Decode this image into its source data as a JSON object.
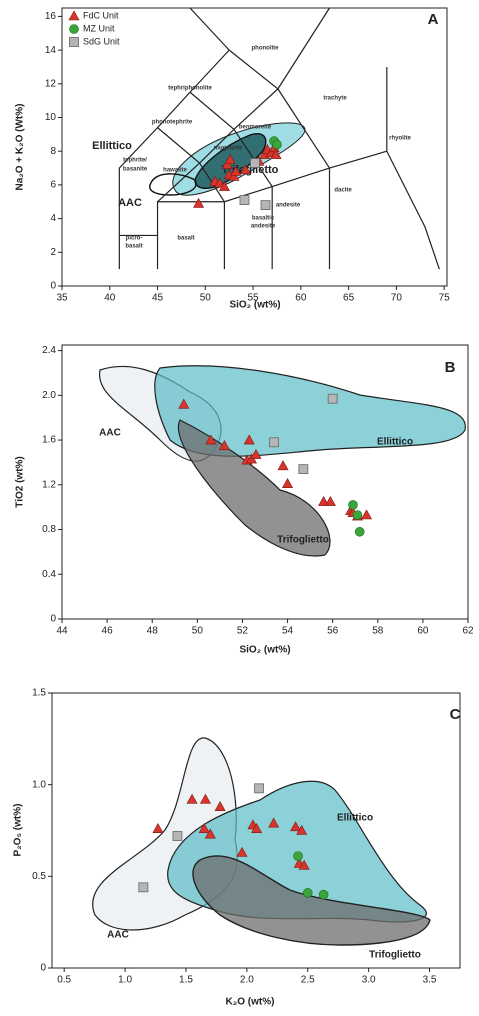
{
  "chart_data": [
    {
      "type": "scatter",
      "title": "A",
      "x_label": "SiO₂ (wt%)",
      "y_label": "Na₂O + K₂O (Wt%)",
      "xlim": [
        35,
        75.3
      ],
      "ylim": [
        0,
        16.5
      ],
      "xticks": [
        35,
        40,
        45,
        50,
        55,
        60,
        65,
        70,
        75
      ],
      "yticks": [
        0,
        2,
        4,
        6,
        8,
        10,
        12,
        14,
        16
      ],
      "legend": "upper left",
      "series": [
        {
          "name": "FdC Unit",
          "color": "#d9342b",
          "marker": "triangle",
          "x": [
            49.3,
            51.0,
            51.5,
            52.0,
            52.3,
            52.5,
            52.6,
            53.0,
            53.2,
            54.2,
            55.6,
            56.2,
            56.5,
            56.9,
            57.2,
            57.4
          ],
          "values": [
            4.9,
            6.2,
            6.1,
            5.9,
            7.2,
            6.6,
            7.5,
            6.5,
            6.8,
            6.9,
            7.4,
            7.8,
            8.1,
            7.9,
            8.2,
            7.8
          ]
        },
        {
          "name": "MZ Unit",
          "color": "#3aa63a",
          "marker": "circle",
          "x": [
            57.2,
            57.5
          ],
          "values": [
            8.6,
            8.4
          ]
        },
        {
          "name": "SdG Unit",
          "color": "#b5b5b5",
          "marker": "square",
          "x": [
            54.1,
            56.3,
            55.2
          ],
          "values": [
            5.1,
            4.8,
            7.3
          ]
        }
      ],
      "annotations": [
        "Ellittico",
        "Trifoglietto",
        "AAC",
        "phonolite",
        "tephriphonolite",
        "phonotephrite",
        "trachyte",
        "rhyolite",
        "benmoreite",
        "mugearite",
        "hawaiite",
        "tephrite/",
        "basanite",
        "picro-",
        "basalt",
        "basalt",
        "basaltic",
        "andesite",
        "andesite",
        "dacite"
      ]
    },
    {
      "type": "scatter",
      "title": "B",
      "x_label": "SiO₂ (wt%)",
      "y_label": "TiO2 (wt%)",
      "xlim": [
        44,
        62
      ],
      "ylim": [
        0,
        2.45
      ],
      "xticks": [
        44,
        46,
        48,
        50,
        52,
        54,
        56,
        58,
        60,
        62
      ],
      "yticks": [
        0,
        0.4,
        0.8,
        1.2,
        1.6,
        {
          "value": 2,
          "label": "2.0"
        },
        2.4
      ],
      "series": [
        {
          "color": "#d9342b",
          "marker": "triangle",
          "x": [
            49.4,
            50.6,
            51.2,
            52.2,
            52.3,
            52.4,
            52.6,
            53.8,
            54.0,
            55.6,
            55.9,
            56.8,
            56.9,
            57.1,
            57.5
          ],
          "values": [
            1.92,
            1.6,
            1.55,
            1.42,
            1.6,
            1.43,
            1.47,
            1.37,
            1.21,
            1.05,
            1.05,
            0.97,
            0.95,
            0.92,
            0.93
          ]
        },
        {
          "color": "#3aa63a",
          "marker": "circle",
          "x": [
            56.9,
            57.1,
            57.2
          ],
          "values": [
            1.02,
            0.93,
            0.78
          ]
        },
        {
          "color": "#b5b5b5",
          "marker": "square",
          "x": [
            53.4,
            54.7,
            56.0
          ],
          "values": [
            1.58,
            1.34,
            1.97
          ]
        }
      ],
      "annotations": [
        "AAC",
        "Ellittico",
        "Trifoglietto"
      ]
    },
    {
      "type": "scatter",
      "title": "C",
      "x_label": "K₂O (wt%)",
      "y_label": "P₂O₅ (wt%)",
      "xlim": [
        0.4,
        3.75
      ],
      "ylim": [
        0,
        1.5
      ],
      "xticks": [
        0.5,
        {
          "value": 1,
          "label": "1.0"
        },
        1.5,
        {
          "value": 2,
          "label": "2.0"
        },
        2.5,
        {
          "value": 3,
          "label": "3.0"
        },
        3.5
      ],
      "yticks": [
        0,
        0.5,
        {
          "value": 1,
          "label": "1.0"
        },
        1.5
      ],
      "series": [
        {
          "color": "#d9342b",
          "marker": "triangle",
          "x": [
            1.27,
            1.55,
            1.66,
            1.65,
            1.7,
            1.78,
            1.96,
            2.05,
            2.08,
            2.22,
            2.4,
            2.45,
            2.43,
            2.47
          ],
          "values": [
            0.76,
            0.92,
            0.92,
            0.76,
            0.73,
            0.88,
            0.63,
            0.78,
            0.76,
            0.79,
            0.77,
            0.75,
            0.57,
            0.56
          ]
        },
        {
          "color": "#3aa63a",
          "marker": "circle",
          "x": [
            2.42,
            2.5,
            2.63
          ],
          "values": [
            0.61,
            0.41,
            0.4
          ]
        },
        {
          "color": "#b5b5b5",
          "marker": "square",
          "x": [
            1.15,
            1.43,
            2.1
          ],
          "values": [
            0.44,
            0.72,
            0.98
          ]
        }
      ],
      "annotations": [
        "AAC",
        "Ellittico",
        "Trifoglietto"
      ]
    }
  ]
}
